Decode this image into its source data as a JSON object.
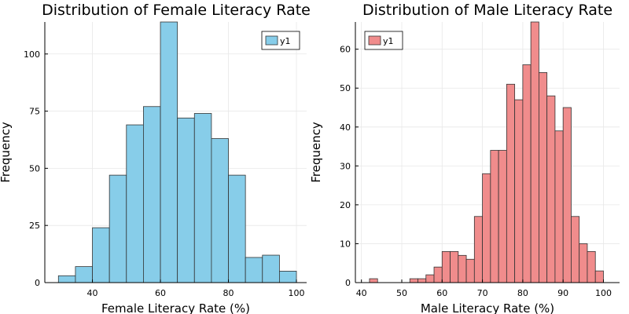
{
  "chart_data": [
    {
      "type": "bar",
      "subtype": "histogram",
      "title": "Distribution of Female Literacy Rate",
      "xlabel": "Female Literacy Rate (%)",
      "ylabel": "Frequency",
      "legend": {
        "label": "y1",
        "placement": "top-right"
      },
      "color": "#87cde9",
      "bin_edges": [
        30,
        35,
        40,
        45,
        50,
        55,
        60,
        65,
        70,
        75,
        80,
        85,
        90,
        95,
        100
      ],
      "values": [
        3,
        7,
        24,
        47,
        69,
        77,
        114,
        72,
        74,
        63,
        47,
        11,
        12,
        5
      ],
      "xlim": [
        26,
        103
      ],
      "ylim": [
        0,
        114
      ],
      "xticks": [
        40,
        60,
        80,
        100
      ],
      "yticks": [
        0,
        25,
        50,
        75,
        100
      ],
      "grid": true
    },
    {
      "type": "bar",
      "subtype": "histogram",
      "title": "Distribution of Male Literacy Rate",
      "xlabel": "Male Literacy Rate (%)",
      "ylabel": "Frequency",
      "legend": {
        "label": "y1",
        "placement": "top-left"
      },
      "color": "#f08c8c",
      "bin_edges": [
        42,
        44,
        46,
        48,
        50,
        52,
        54,
        56,
        58,
        60,
        62,
        64,
        66,
        68,
        70,
        72,
        74,
        76,
        78,
        80,
        82,
        84,
        86,
        88,
        90,
        92,
        94,
        96,
        98,
        100
      ],
      "values": [
        1,
        0,
        0,
        0,
        0,
        1,
        1,
        2,
        4,
        8,
        8,
        7,
        6,
        17,
        28,
        34,
        34,
        51,
        47,
        56,
        67,
        54,
        48,
        39,
        45,
        17,
        10,
        8,
        3
      ],
      "xlim": [
        38.5,
        104
      ],
      "ylim": [
        0,
        67
      ],
      "xticks": [
        40,
        50,
        60,
        70,
        80,
        90,
        100
      ],
      "yticks": [
        0,
        10,
        20,
        30,
        40,
        50,
        60
      ],
      "grid": true
    }
  ]
}
